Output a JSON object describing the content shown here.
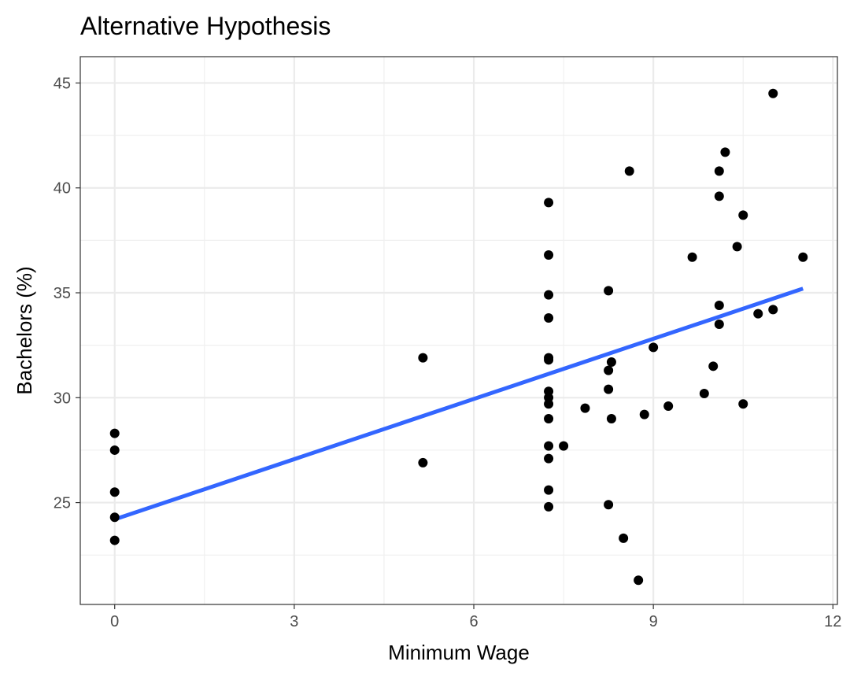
{
  "chart_data": {
    "type": "scatter",
    "title": "Alternative Hypothesis",
    "xlabel": "Minimum Wage",
    "ylabel": "Bachelors (%)",
    "xlim": [
      -0.575,
      12.075
    ],
    "ylim": [
      20.145,
      46.255
    ],
    "x_ticks": [
      0,
      3,
      6,
      9,
      12
    ],
    "y_ticks": [
      25,
      30,
      35,
      40,
      45
    ],
    "grid": true,
    "point_color": "#000000",
    "trend_color": "#3366ff",
    "trend_line": {
      "x": [
        0,
        11.5
      ],
      "y": [
        24.2,
        35.2
      ]
    },
    "series": [
      {
        "points": [
          [
            0,
            28.3
          ],
          [
            0,
            27.5
          ],
          [
            0,
            25.5
          ],
          [
            0,
            24.3
          ],
          [
            0,
            23.2
          ],
          [
            5.15,
            31.9
          ],
          [
            5.15,
            26.9
          ],
          [
            7.25,
            39.3
          ],
          [
            7.25,
            36.8
          ],
          [
            7.25,
            34.9
          ],
          [
            7.25,
            33.8
          ],
          [
            7.25,
            31.9
          ],
          [
            7.25,
            31.8
          ],
          [
            7.25,
            30.3
          ],
          [
            7.25,
            30.0
          ],
          [
            7.25,
            29.7
          ],
          [
            7.25,
            29.0
          ],
          [
            7.25,
            27.7
          ],
          [
            7.25,
            27.1
          ],
          [
            7.25,
            25.6
          ],
          [
            7.25,
            24.8
          ],
          [
            7.5,
            27.7
          ],
          [
            7.86,
            29.5
          ],
          [
            8.25,
            35.1
          ],
          [
            8.25,
            31.3
          ],
          [
            8.25,
            30.4
          ],
          [
            8.25,
            24.9
          ],
          [
            8.3,
            31.7
          ],
          [
            8.3,
            29.0
          ],
          [
            8.5,
            23.3
          ],
          [
            8.6,
            40.8
          ],
          [
            8.75,
            21.3
          ],
          [
            8.85,
            29.2
          ],
          [
            9.0,
            32.4
          ],
          [
            9.25,
            29.6
          ],
          [
            9.65,
            36.7
          ],
          [
            9.85,
            30.2
          ],
          [
            10.0,
            31.5
          ],
          [
            10.1,
            40.8
          ],
          [
            10.1,
            39.6
          ],
          [
            10.1,
            34.4
          ],
          [
            10.1,
            33.5
          ],
          [
            10.2,
            41.7
          ],
          [
            10.4,
            37.2
          ],
          [
            10.5,
            38.7
          ],
          [
            10.5,
            29.7
          ],
          [
            10.75,
            34.0
          ],
          [
            11.0,
            44.5
          ],
          [
            11.0,
            34.2
          ],
          [
            11.5,
            36.7
          ]
        ]
      }
    ]
  }
}
